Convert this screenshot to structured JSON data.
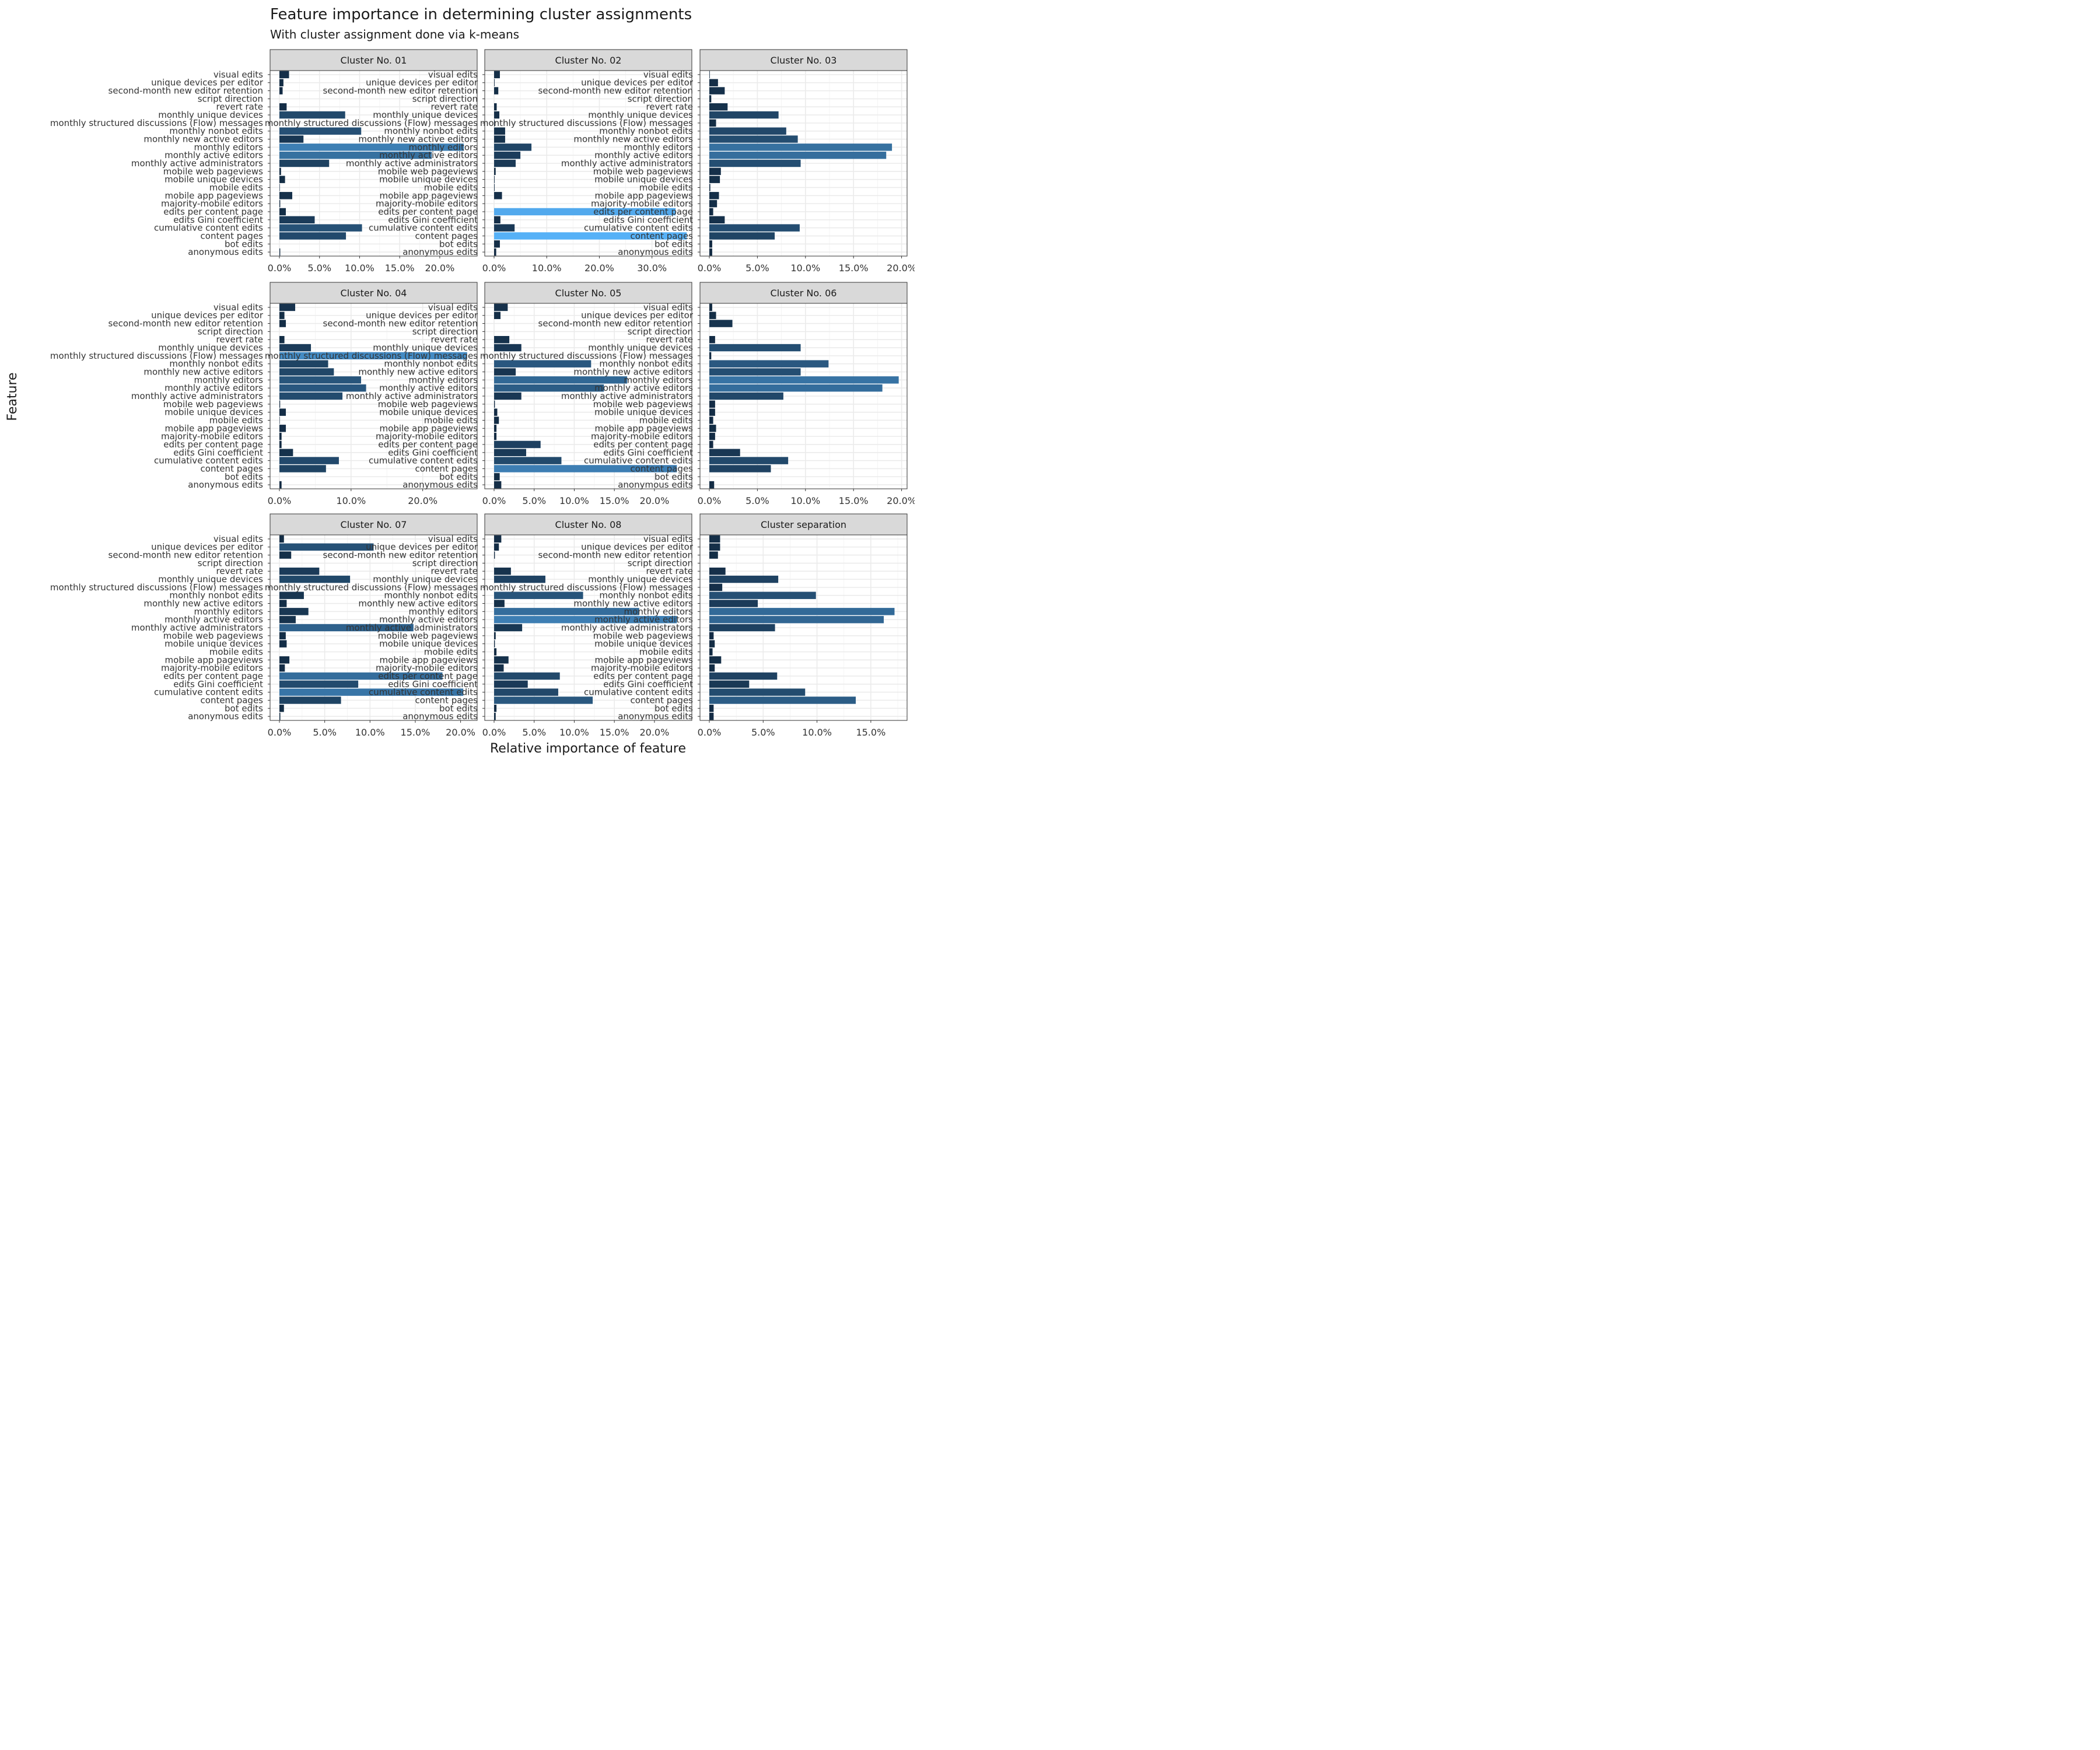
{
  "title": "Feature importance in determining cluster assignments",
  "subtitle": "With cluster assignment done via k-means",
  "xlabel": "Relative importance of feature",
  "ylabel": "Feature",
  "chart_data": {
    "type": "bar",
    "orientation": "horizontal",
    "title": "Feature importance in determining cluster assignments",
    "subtitle": "With cluster assignment done via k-means",
    "xlabel": "Relative importance of feature",
    "ylabel": "Feature",
    "grid": true,
    "fill_scale": {
      "low": "#132B43",
      "high": "#56B1F7"
    },
    "categories": [
      "visual edits",
      "unique devices per editor",
      "second-month new editor retention",
      "script direction",
      "revert rate",
      "monthly unique devices",
      "monthly structured discussions (Flow) messages",
      "monthly nonbot edits",
      "monthly new active editors",
      "monthly editors",
      "monthly active editors",
      "monthly active administrators",
      "mobile web pageviews",
      "mobile unique devices",
      "mobile edits",
      "mobile app pageviews",
      "majority-mobile editors",
      "edits per content page",
      "edits Gini coefficient",
      "cumulative content edits",
      "content pages",
      "bot edits",
      "anonymous edits"
    ],
    "panels": [
      {
        "name": "Cluster No. 01",
        "xmax": 0.235,
        "ticks": [
          "0.0%",
          "5.0%",
          "10.0%",
          "15.0%",
          "20.0%"
        ],
        "tick_values": [
          0,
          0.05,
          0.1,
          0.15,
          0.2
        ],
        "values": [
          0.012,
          0.005,
          0.004,
          0.0,
          0.009,
          0.082,
          0.0,
          0.102,
          0.03,
          0.23,
          0.19,
          0.062,
          0.002,
          0.007,
          0.0005,
          0.016,
          0.001,
          0.008,
          0.044,
          0.103,
          0.083,
          0.0,
          0.001
        ]
      },
      {
        "name": "Cluster No. 02",
        "xmax": 0.358,
        "ticks": [
          "0.0%",
          "10.0%",
          "20.0%",
          "30.0%"
        ],
        "tick_values": [
          0,
          0.1,
          0.2,
          0.3
        ],
        "values": [
          0.011,
          0.001,
          0.008,
          0.0,
          0.005,
          0.01,
          0.001,
          0.021,
          0.021,
          0.071,
          0.05,
          0.041,
          0.003,
          0.001,
          0.001,
          0.015,
          0.0,
          0.345,
          0.012,
          0.039,
          0.366,
          0.011,
          0.004
        ]
      },
      {
        "name": "Cluster No. 03",
        "xmax": 0.196,
        "ticks": [
          "0.0%",
          "5.0%",
          "10.0%",
          "15.0%",
          "20.0%"
        ],
        "tick_values": [
          0,
          0.05,
          0.1,
          0.15,
          0.2
        ],
        "values": [
          0.0005,
          0.009,
          0.016,
          0.002,
          0.019,
          0.072,
          0.007,
          0.08,
          0.092,
          0.19,
          0.184,
          0.095,
          0.012,
          0.011,
          0.001,
          0.01,
          0.008,
          0.004,
          0.016,
          0.094,
          0.068,
          0.003,
          0.003
        ]
      },
      {
        "name": "Cluster No. 04",
        "xmax": 0.263,
        "ticks": [
          "0.0%",
          "10.0%",
          "20.0%"
        ],
        "tick_values": [
          0,
          0.1,
          0.2
        ],
        "values": [
          0.022,
          0.007,
          0.009,
          0.0,
          0.007,
          0.044,
          0.262,
          0.068,
          0.076,
          0.114,
          0.121,
          0.088,
          0.001,
          0.009,
          0.0005,
          0.009,
          0.003,
          0.003,
          0.019,
          0.083,
          0.065,
          0.0,
          0.003
        ]
      },
      {
        "name": "Cluster No. 05",
        "xmax": 0.235,
        "ticks": [
          "0.0%",
          "5.0%",
          "10.0%",
          "15.0%",
          "20.0%"
        ],
        "tick_values": [
          0,
          0.05,
          0.1,
          0.15,
          0.2
        ],
        "values": [
          0.017,
          0.008,
          0.0,
          0.0,
          0.019,
          0.034,
          0.0,
          0.121,
          0.027,
          0.166,
          0.137,
          0.034,
          0.001,
          0.004,
          0.006,
          0.003,
          0.003,
          0.058,
          0.04,
          0.084,
          0.228,
          0.007,
          0.009
        ]
      },
      {
        "name": "Cluster No. 06",
        "xmax": 0.196,
        "ticks": [
          "0.0%",
          "5.0%",
          "10.0%",
          "15.0%",
          "20.0%"
        ],
        "tick_values": [
          0,
          0.05,
          0.1,
          0.15,
          0.2
        ],
        "values": [
          0.003,
          0.007,
          0.024,
          0.0,
          0.006,
          0.095,
          0.002,
          0.124,
          0.095,
          0.197,
          0.18,
          0.077,
          0.006,
          0.006,
          0.004,
          0.007,
          0.006,
          0.004,
          0.032,
          0.082,
          0.064,
          0.0,
          0.005
        ]
      },
      {
        "name": "Cluster No. 07",
        "xmax": 0.208,
        "ticks": [
          "0.0%",
          "5.0%",
          "10.0%",
          "15.0%",
          "20.0%"
        ],
        "tick_values": [
          0,
          0.05,
          0.1,
          0.15,
          0.2
        ],
        "values": [
          0.005,
          0.104,
          0.013,
          0.0,
          0.044,
          0.078,
          0.0,
          0.027,
          0.008,
          0.032,
          0.018,
          0.148,
          0.007,
          0.008,
          0.0,
          0.011,
          0.006,
          0.18,
          0.087,
          0.203,
          0.068,
          0.005,
          0.001
        ]
      },
      {
        "name": "Cluster No. 08",
        "xmax": 0.235,
        "ticks": [
          "0.0%",
          "5.0%",
          "10.0%",
          "15.0%",
          "20.0%"
        ],
        "tick_values": [
          0,
          0.05,
          0.1,
          0.15,
          0.2
        ],
        "values": [
          0.009,
          0.006,
          0.001,
          0.0,
          0.021,
          0.064,
          0.0,
          0.111,
          0.013,
          0.181,
          0.228,
          0.035,
          0.002,
          0.001,
          0.003,
          0.018,
          0.012,
          0.082,
          0.042,
          0.08,
          0.123,
          0.003,
          0.002
        ]
      },
      {
        "name": "Cluster separation",
        "xmax": 0.175,
        "ticks": [
          "0.0%",
          "5.0%",
          "10.0%",
          "15.0%"
        ],
        "tick_values": [
          0,
          0.05,
          0.1,
          0.15
        ],
        "values": [
          0.01,
          0.01,
          0.008,
          0.0,
          0.015,
          0.064,
          0.012,
          0.099,
          0.045,
          0.172,
          0.162,
          0.061,
          0.004,
          0.005,
          0.003,
          0.011,
          0.005,
          0.063,
          0.037,
          0.089,
          0.136,
          0.004,
          0.004
        ]
      }
    ]
  }
}
